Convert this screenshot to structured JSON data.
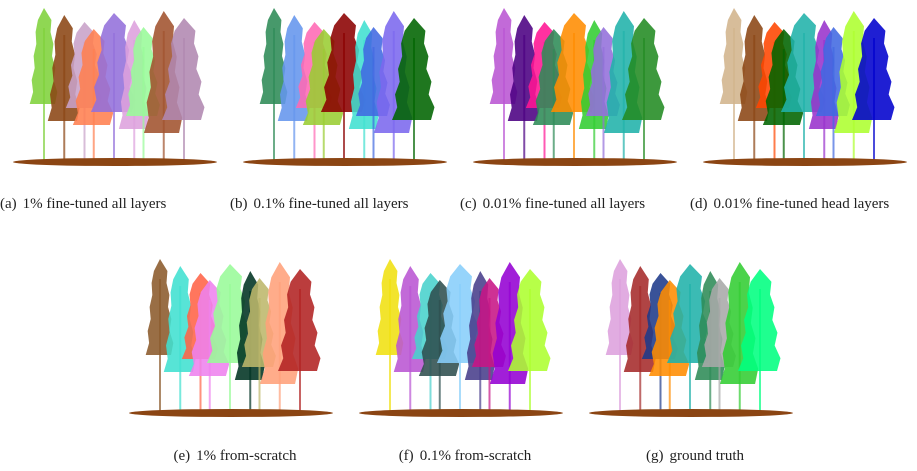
{
  "figures": [
    {
      "label": "(a)",
      "caption": "1% fine-tuned all layers"
    },
    {
      "label": "(b)",
      "caption": "0.1% fine-tuned all layers"
    },
    {
      "label": "(c)",
      "caption": "0.01% fine-tuned all layers"
    },
    {
      "label": "(d)",
      "caption": "0.01% fine-tuned head layers"
    },
    {
      "label": "(e)",
      "caption": "1% from-scratch"
    },
    {
      "label": "(f)",
      "caption": "0.1% from-scratch"
    },
    {
      "label": "(g)",
      "caption": "ground truth"
    }
  ]
}
